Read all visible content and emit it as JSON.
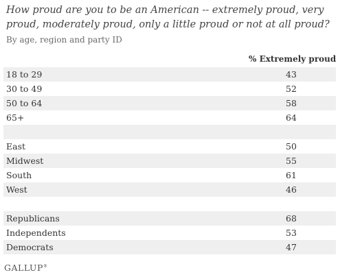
{
  "chart_data": {
    "type": "table",
    "title": "How proud are you to be an American -- extremely proud, very proud, moderately proud, only a little proud or not at all proud?",
    "subtitle": "By age, region and party ID",
    "column_header": "% Extremely proud",
    "rows": [
      {
        "label": "18 to 29",
        "value": "43"
      },
      {
        "label": "30 to 49",
        "value": "52"
      },
      {
        "label": "50 to 64",
        "value": "58"
      },
      {
        "label": "65+",
        "value": "64"
      },
      {
        "label": "",
        "value": ""
      },
      {
        "label": "East",
        "value": "50"
      },
      {
        "label": "Midwest",
        "value": "55"
      },
      {
        "label": "South",
        "value": "61"
      },
      {
        "label": "West",
        "value": "46"
      },
      {
        "label": "",
        "value": ""
      },
      {
        "label": "Republicans",
        "value": "68"
      },
      {
        "label": "Independents",
        "value": "53"
      },
      {
        "label": "Democrats",
        "value": "47"
      }
    ]
  },
  "logo": "GALLUP",
  "logo_mark": "®"
}
